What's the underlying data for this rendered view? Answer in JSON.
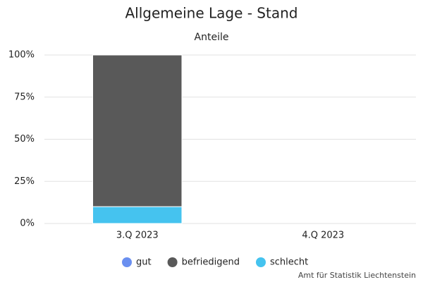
{
  "chart_data": {
    "type": "stacked_bar",
    "title": "Allgemeine Lage - Stand",
    "subtitle": "Anteile",
    "categories": [
      "3.Q 2023",
      "4.Q 2023"
    ],
    "series": [
      {
        "name": "gut",
        "color": "#6a8ff0",
        "values": [
          0,
          null
        ]
      },
      {
        "name": "befriedigend",
        "color": "#595959",
        "values": [
          90,
          null
        ]
      },
      {
        "name": "schlecht",
        "color": "#45c3ef",
        "values": [
          10,
          null
        ]
      }
    ],
    "ylim": [
      0,
      100
    ],
    "yticks": [
      {
        "value": 0,
        "label": "0%"
      },
      {
        "value": 25,
        "label": "25%"
      },
      {
        "value": 50,
        "label": "50%"
      },
      {
        "value": 75,
        "label": "75%"
      },
      {
        "value": 100,
        "label": "100%"
      }
    ],
    "grid": true,
    "legend": "bottom",
    "credit": "Amt für Statistik Liechtenstein"
  }
}
